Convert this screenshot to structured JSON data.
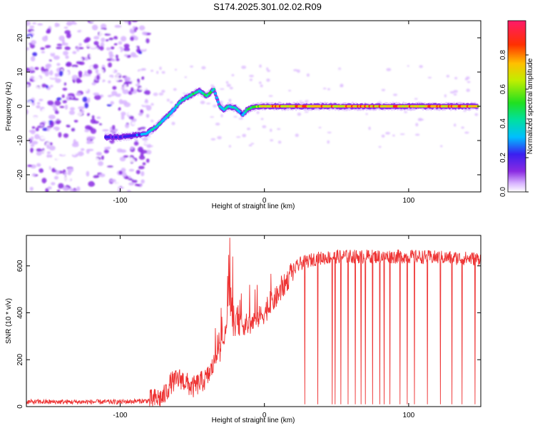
{
  "title": "S174.2025.301.02.02.R09",
  "chart_data": [
    {
      "type": "heatmap",
      "name": "spectrogram",
      "xlabel": "Height of straight line (km)",
      "ylabel": "Frequency (Hz)",
      "xlim": [
        -165,
        150
      ],
      "ylim": [
        -25,
        25
      ],
      "xticks": [
        -100,
        0,
        100
      ],
      "xtick_labels": [
        "-100",
        "0",
        "100"
      ],
      "yticks": [
        -20,
        -10,
        0,
        10,
        20
      ],
      "ytick_labels": [
        "-20",
        "-10",
        "0",
        "10",
        "20"
      ],
      "noise_region_x": [
        -165,
        -80
      ],
      "ridge": {
        "x": [
          -110,
          -100,
          -90,
          -82,
          -75,
          -65,
          -58,
          -50,
          -45,
          -40,
          -35,
          -31,
          -28,
          -25,
          -20,
          -15,
          -12,
          -8,
          -3,
          0,
          50,
          100,
          148
        ],
        "freq": [
          -9,
          -9,
          -8.5,
          -8,
          -6,
          -2,
          1.5,
          3.5,
          4.5,
          3,
          5,
          0,
          -1,
          0,
          -0.5,
          -2.5,
          -1,
          -0.2,
          0,
          0,
          0,
          0,
          0
        ],
        "amplitude": [
          0.25,
          0.25,
          0.28,
          0.4,
          0.45,
          0.4,
          0.45,
          0.5,
          0.5,
          0.55,
          0.45,
          0.4,
          0.4,
          0.45,
          0.45,
          0.35,
          0.45,
          0.6,
          0.7,
          0.85,
          0.85,
          0.85,
          0.85
        ]
      }
    },
    {
      "type": "colorbar",
      "name": "amplitude-colorbar",
      "label": "Normalized spectral amplitude",
      "range": [
        0,
        1
      ],
      "ticks": [
        0,
        0.2,
        0.4,
        0.6,
        0.8
      ],
      "tick_labels": [
        "0.0",
        "0.2",
        "0.4",
        "0.6",
        "0.8"
      ]
    },
    {
      "type": "line",
      "name": "snr",
      "xlabel": "Height of straight line (km)",
      "ylabel": "SNR (10 * v/v)",
      "xlim": [
        -165,
        150
      ],
      "ylim": [
        0,
        730
      ],
      "xticks": [
        -100,
        0,
        100
      ],
      "xtick_labels": [
        "-100",
        "0",
        "100"
      ],
      "yticks": [
        0,
        200,
        400,
        600
      ],
      "ytick_labels": [
        "0",
        "200",
        "400",
        "600"
      ],
      "color": "#ee3333",
      "envelope": {
        "x": [
          -165,
          -100,
          -80,
          -70,
          -65,
          -58,
          -50,
          -40,
          -35,
          -30,
          -27,
          -25,
          -22,
          -20,
          -10,
          0,
          10,
          20,
          25,
          35,
          50,
          100,
          150
        ],
        "snr": [
          20,
          20,
          25,
          40,
          100,
          120,
          80,
          120,
          180,
          250,
          300,
          500,
          330,
          350,
          350,
          400,
          480,
          580,
          610,
          630,
          640,
          640,
          630
        ]
      },
      "noise_amplitude": 30,
      "spikes": [
        {
          "x": -24,
          "snr": 720
        },
        {
          "x": -22,
          "snr": 640
        }
      ],
      "dropouts": [
        28,
        37,
        47,
        49,
        53,
        58,
        63,
        67,
        70,
        75,
        80,
        83,
        87,
        94,
        99,
        104,
        113,
        122,
        130,
        137,
        146
      ]
    }
  ]
}
